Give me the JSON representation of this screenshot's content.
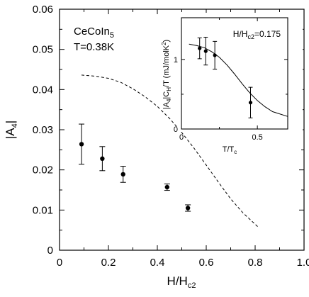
{
  "chart_data": [
    {
      "type": "scatter",
      "xlabel": "H/H",
      "xlabel_sub": "c2",
      "ylabel": "|A",
      "ylabel_sub": "4",
      "ylabel_end": "|",
      "xlim": [
        0,
        1.0
      ],
      "ylim": [
        0,
        0.06
      ],
      "xticks": [
        "0",
        "0.2",
        "0.4",
        "0.6",
        "0.8",
        "1.0"
      ],
      "yticks": [
        "0",
        "0.01",
        "0.02",
        "0.03",
        "0.04",
        "0.05",
        "0.06"
      ],
      "annotations": [
        {
          "text": "CeCoIn",
          "sub": "5"
        },
        {
          "text": "T=0.38K"
        }
      ],
      "series": [
        {
          "style": "points-with-errorbars",
          "points": [
            {
              "x": 0.09,
              "y": 0.0264,
              "err": 0.005
            },
            {
              "x": 0.175,
              "y": 0.0228,
              "err": 0.003
            },
            {
              "x": 0.26,
              "y": 0.0189,
              "err": 0.002
            },
            {
              "x": 0.44,
              "y": 0.0157,
              "err": 0.0008
            },
            {
              "x": 0.525,
              "y": 0.0105,
              "err": 0.0008
            }
          ]
        },
        {
          "style": "dashed-line",
          "points": [
            {
              "x": 0.09,
              "y": 0.0436
            },
            {
              "x": 0.15,
              "y": 0.0433
            },
            {
              "x": 0.2,
              "y": 0.0428
            },
            {
              "x": 0.25,
              "y": 0.0418
            },
            {
              "x": 0.3,
              "y": 0.0402
            },
            {
              "x": 0.35,
              "y": 0.0382
            },
            {
              "x": 0.4,
              "y": 0.0358
            },
            {
              "x": 0.45,
              "y": 0.0328
            },
            {
              "x": 0.5,
              "y": 0.0293
            },
            {
              "x": 0.55,
              "y": 0.0254
            },
            {
              "x": 0.6,
              "y": 0.0212
            },
            {
              "x": 0.65,
              "y": 0.0169
            },
            {
              "x": 0.7,
              "y": 0.0128
            },
            {
              "x": 0.75,
              "y": 0.0093
            },
            {
              "x": 0.81,
              "y": 0.0059
            }
          ]
        }
      ]
    },
    {
      "type": "scatter",
      "xlabel": "T/T",
      "xlabel_sub": "c",
      "ylabel": "|A",
      "ylabel_sub1": "4",
      "ylabel_mid": "|C",
      "ylabel_sub2": "H",
      "ylabel_tail": "/T (mJ/molK",
      "ylabel_sup": "2",
      "ylabel_end": ")",
      "xlim": [
        0,
        0.7
      ],
      "ylim": [
        0,
        1.6
      ],
      "xticks": [
        "0",
        "0.5"
      ],
      "yticks": [
        "0",
        "1"
      ],
      "annotations": [
        {
          "text": "H/H",
          "sub": "c2",
          "tail": "=0.175"
        }
      ],
      "series": [
        {
          "style": "points-with-errorbars",
          "points": [
            {
              "x": 0.12,
              "y": 1.16,
              "err": 0.15
            },
            {
              "x": 0.16,
              "y": 1.12,
              "err": 0.2
            },
            {
              "x": 0.22,
              "y": 1.06,
              "err": 0.2
            },
            {
              "x": 0.455,
              "y": 0.38,
              "err": 0.22
            }
          ]
        },
        {
          "style": "solid-line",
          "points": [
            {
              "x": 0.05,
              "y": 1.22
            },
            {
              "x": 0.1,
              "y": 1.2
            },
            {
              "x": 0.15,
              "y": 1.17
            },
            {
              "x": 0.2,
              "y": 1.11
            },
            {
              "x": 0.25,
              "y": 1.03
            },
            {
              "x": 0.3,
              "y": 0.92
            },
            {
              "x": 0.35,
              "y": 0.79
            },
            {
              "x": 0.4,
              "y": 0.65
            },
            {
              "x": 0.45,
              "y": 0.52
            },
            {
              "x": 0.5,
              "y": 0.41
            },
            {
              "x": 0.55,
              "y": 0.32
            },
            {
              "x": 0.6,
              "y": 0.25
            },
            {
              "x": 0.7,
              "y": 0.18
            }
          ]
        }
      ]
    }
  ]
}
